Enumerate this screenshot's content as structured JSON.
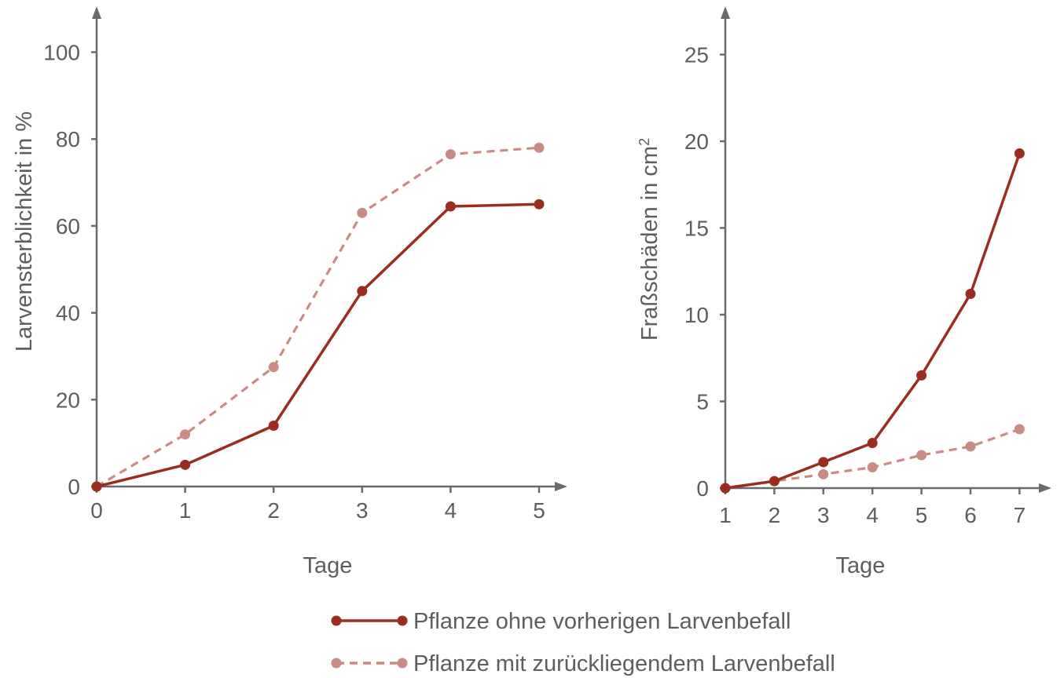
{
  "colors": {
    "series_solid": "#9b2d1f",
    "series_dashed": "#c98b82",
    "axis": "#6b6b6b",
    "text": "#5e5e5e"
  },
  "legend": {
    "items": [
      {
        "label": "Pflanze ohne vorherigen Larvenbefall",
        "style": "solid"
      },
      {
        "label": "Pflanze mit zurückliegendem Larvenbefall",
        "style": "dashed"
      }
    ]
  },
  "chart_data": [
    {
      "type": "line",
      "xlabel": "Tage",
      "ylabel": "Larvensterblichkeit in %",
      "x": [
        0,
        1,
        2,
        3,
        4,
        5
      ],
      "xticks": [
        "0",
        "1",
        "2",
        "3",
        "4",
        "5"
      ],
      "yticks": [
        "0",
        "20",
        "40",
        "60",
        "80",
        "100"
      ],
      "xlim": [
        0,
        5.3
      ],
      "ylim": [
        0,
        110
      ],
      "grid": false,
      "series": [
        {
          "name": "Pflanze ohne vorherigen Larvenbefall",
          "style": "solid",
          "values": [
            0,
            5,
            14,
            45,
            64.5,
            65
          ]
        },
        {
          "name": "Pflanze mit zurückliegendem Larvenbefall",
          "style": "dashed",
          "values": [
            0,
            12,
            27.5,
            63,
            76.5,
            78
          ]
        }
      ]
    },
    {
      "type": "line",
      "xlabel": "Tage",
      "ylabel": "Fraßschäden in cm",
      "ylabel_sup": "2",
      "x": [
        1,
        2,
        3,
        4,
        5,
        6,
        7
      ],
      "xticks": [
        "1",
        "2",
        "3",
        "4",
        "5",
        "6",
        "7"
      ],
      "yticks": [
        "0",
        "5",
        "10",
        "15",
        "20",
        "25"
      ],
      "xlim": [
        1,
        7.5
      ],
      "ylim": [
        0,
        27
      ],
      "grid": false,
      "series": [
        {
          "name": "Pflanze ohne vorherigen Larvenbefall",
          "style": "solid",
          "values": [
            0,
            0.4,
            1.5,
            2.6,
            6.5,
            11.2,
            19.3
          ]
        },
        {
          "name": "Pflanze mit zurückliegendem Larvenbefall",
          "style": "dashed",
          "values": [
            0,
            0.4,
            0.8,
            1.2,
            1.9,
            2.4,
            3.4
          ]
        }
      ]
    }
  ]
}
